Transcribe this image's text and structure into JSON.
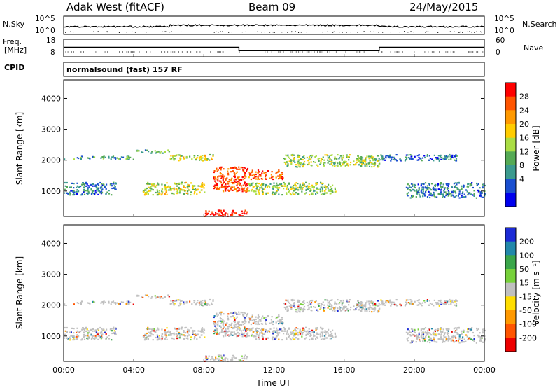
{
  "header": {
    "station": "Adak West (fitACF)",
    "beam": "Beam 09",
    "date": "24/May/2015"
  },
  "sky_panel": {
    "left_label": "N.Sky",
    "right_label": "N.Search",
    "left_ticks": [
      "10^5",
      "10^0"
    ],
    "right_ticks": [
      "10^5",
      "10^0"
    ]
  },
  "freq_panel": {
    "label_line1": "Freq.",
    "label_line2": "[MHz]",
    "ticks": [
      "18",
      "8"
    ],
    "right_label": "Nave",
    "right_ticks": [
      "60",
      "0"
    ]
  },
  "cpid_panel": {
    "label": "CPID",
    "mode": "normalsound (fast) 157 RF"
  },
  "power_panel": {
    "ylabel": "Slant Range [km]",
    "yticks": [
      "4000",
      "3000",
      "2000",
      "1000"
    ],
    "scale_label": "Power [dB]",
    "scale_ticks": [
      "28",
      "24",
      "20",
      "16",
      "12",
      "8",
      "4"
    ],
    "scale_colors": [
      "#ff0000",
      "#ff5500",
      "#ff9900",
      "#ffcc00",
      "#aadd44",
      "#55aa55",
      "#3b9a8e",
      "#1a4fd0",
      "#0000ee"
    ]
  },
  "velocity_panel": {
    "ylabel": "Slant Range [km]",
    "yticks": [
      "4000",
      "3000",
      "2000",
      "1000"
    ],
    "scale_label": "Velocity [m s⁻¹]",
    "scale_ticks": [
      "200",
      "100",
      "50",
      "15",
      "-15",
      "-50",
      "-100",
      "-200"
    ],
    "scale_colors": [
      "#1c2bd6",
      "#2288aa",
      "#3aa64a",
      "#77d13a",
      "#c0c0c0",
      "#ffdd00",
      "#ff9900",
      "#ff5500",
      "#ee0000"
    ],
    "ground_scatter_color": "#c0c0c0"
  },
  "x_axis": {
    "ticks": [
      "00:00",
      "04:00",
      "08:00",
      "12:00",
      "16:00",
      "20:00",
      "00:00"
    ],
    "label": "Time UT"
  },
  "chart_data": {
    "type": "heatmap",
    "x_range_hours": [
      0,
      24
    ],
    "y_range_km": [
      180,
      4600
    ],
    "frequency_mhz": [
      {
        "from_hour": 0,
        "to_hour": 10,
        "value": 13
      },
      {
        "from_hour": 10,
        "to_hour": 18,
        "value": 10.5
      },
      {
        "from_hour": 18,
        "to_hour": 24,
        "value": 13
      }
    ],
    "power_bands": [
      {
        "from_hour": 0.0,
        "to_hour": 4.0,
        "range_km": [
          2050,
          2150
        ],
        "power_db": 10
      },
      {
        "from_hour": 4.0,
        "to_hour": 6.0,
        "range_km": [
          2250,
          2350
        ],
        "power_db": 12
      },
      {
        "from_hour": 6.0,
        "to_hour": 8.5,
        "range_km": [
          2000,
          2200
        ],
        "power_db": 16
      },
      {
        "from_hour": 8.5,
        "to_hour": 10.5,
        "range_km": [
          1000,
          1800
        ],
        "power_db": 26
      },
      {
        "from_hour": 10.5,
        "to_hour": 12.5,
        "range_km": [
          1400,
          1700
        ],
        "power_db": 24
      },
      {
        "from_hour": 12.5,
        "to_hour": 18.0,
        "range_km": [
          1800,
          2200
        ],
        "power_db": 14
      },
      {
        "from_hour": 18.0,
        "to_hour": 22.5,
        "range_km": [
          2000,
          2200
        ],
        "power_db": 8
      },
      {
        "from_hour": 0.0,
        "to_hour": 3.0,
        "range_km": [
          900,
          1300
        ],
        "power_db": 8
      },
      {
        "from_hour": 4.5,
        "to_hour": 8.0,
        "range_km": [
          900,
          1300
        ],
        "power_db": 16
      },
      {
        "from_hour": 10.5,
        "to_hour": 15.5,
        "range_km": [
          900,
          1300
        ],
        "power_db": 14
      },
      {
        "from_hour": 19.5,
        "to_hour": 24.0,
        "range_km": [
          800,
          1300
        ],
        "power_db": 8
      },
      {
        "from_hour": 8.0,
        "to_hour": 10.5,
        "range_km": [
          200,
          400
        ],
        "power_db": 28
      }
    ]
  }
}
